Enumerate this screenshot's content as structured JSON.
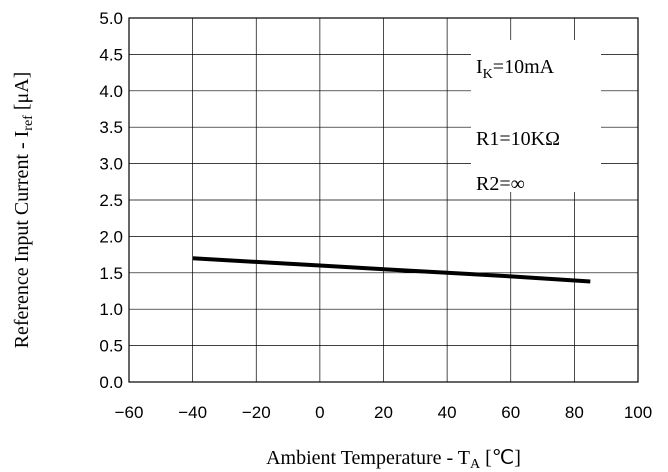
{
  "chart_data": {
    "type": "line",
    "x": [
      -40,
      -20,
      0,
      20,
      40,
      60,
      85
    ],
    "series": [
      {
        "values": [
          1.7,
          1.65,
          1.6,
          1.55,
          1.5,
          1.45,
          1.38
        ],
        "color": "#000000"
      }
    ],
    "xlim": [
      -60,
      100
    ],
    "ylim": [
      0,
      5
    ],
    "x_ticks": [
      "−60",
      "−40",
      "−20",
      "0",
      "20",
      "40",
      "60",
      "80",
      "100"
    ],
    "y_ticks": [
      "0.0",
      "0.5",
      "1.0",
      "1.5",
      "2.0",
      "2.5",
      "3.0",
      "3.5",
      "4.0",
      "4.5",
      "5.0"
    ],
    "xlabel": {
      "text": "Ambient Temperature - T",
      "sub": "A",
      "unit": " [℃]"
    },
    "ylabel": {
      "text": "Reference Input Current - I",
      "sub": "ref",
      "unit": " [μA]"
    },
    "grid": true,
    "annotations": [
      {
        "text": "I",
        "sub": "K",
        "rest": "=10mA"
      },
      {
        "text": "R1=10KΩ",
        "sub": "",
        "rest": ""
      },
      {
        "text": "R2=∞",
        "sub": "",
        "rest": ""
      }
    ]
  }
}
